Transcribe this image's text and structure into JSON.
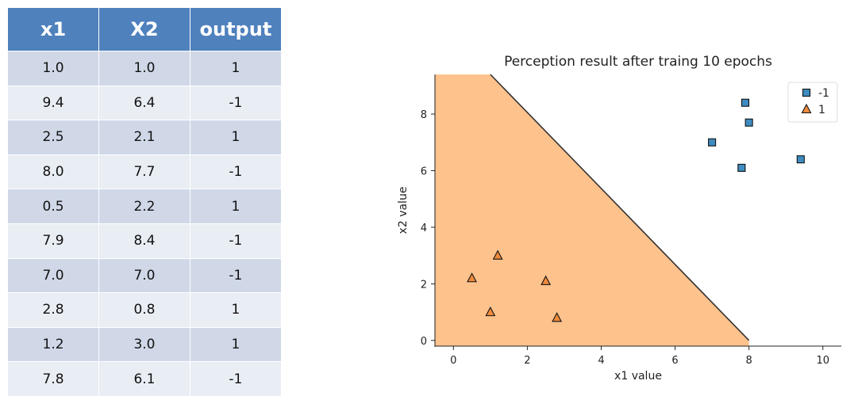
{
  "table": {
    "headers": [
      "x1",
      "X2",
      "output"
    ],
    "rows": [
      [
        "1.0",
        "1.0",
        "1"
      ],
      [
        "9.4",
        "6.4",
        "-1"
      ],
      [
        "2.5",
        "2.1",
        "1"
      ],
      [
        "8.0",
        "7.7",
        "-1"
      ],
      [
        "0.5",
        "2.2",
        "1"
      ],
      [
        "7.9",
        "8.4",
        "-1"
      ],
      [
        "7.0",
        "7.0",
        "-1"
      ],
      [
        "2.8",
        "0.8",
        "1"
      ],
      [
        "1.2",
        "3.0",
        "1"
      ],
      [
        "7.8",
        "6.1",
        "-1"
      ]
    ]
  },
  "chart_data": {
    "type": "scatter",
    "title": "Perception result after traing 10 epochs",
    "xlabel": "x1 value",
    "ylabel": "x2 value",
    "xlim": [
      -0.5,
      10.5
    ],
    "ylim": [
      -0.2,
      9.4
    ],
    "xticks": [
      0,
      2,
      4,
      6,
      8,
      10
    ],
    "yticks": [
      0,
      2,
      4,
      6,
      8
    ],
    "grid": false,
    "legend_position": "top-right",
    "decision_boundary": {
      "line": [
        [
          1.0,
          9.4
        ],
        [
          8.0,
          0.0
        ]
      ],
      "region_class": "1",
      "region_color": "#fec28d",
      "line_color": "#333333"
    },
    "series": [
      {
        "name": "-1",
        "marker": "square",
        "color": "#3e8cc0",
        "points": [
          [
            9.4,
            6.4
          ],
          [
            8.0,
            7.7
          ],
          [
            7.9,
            8.4
          ],
          [
            7.0,
            7.0
          ],
          [
            7.8,
            6.1
          ]
        ]
      },
      {
        "name": "1",
        "marker": "triangle",
        "color": "#f08a3c",
        "points": [
          [
            1.0,
            1.0
          ],
          [
            2.5,
            2.1
          ],
          [
            0.5,
            2.2
          ],
          [
            2.8,
            0.8
          ],
          [
            1.2,
            3.0
          ]
        ]
      }
    ]
  }
}
